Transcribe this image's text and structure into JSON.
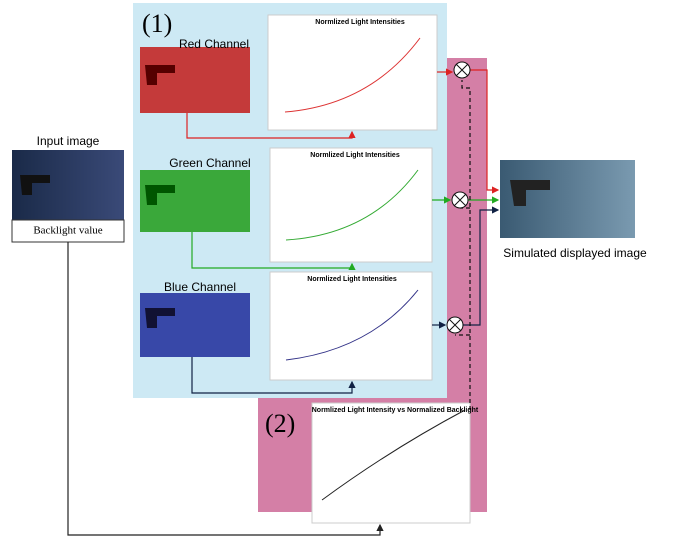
{
  "input": {
    "label": "Input image",
    "backlight": "Backlight value"
  },
  "panel1": {
    "label": "(1)",
    "channels": [
      {
        "name": "Red Channel",
        "chart_title": "Normlized Light Intensities"
      },
      {
        "name": "Green Channel",
        "chart_title": "Normlized Light Intensities"
      },
      {
        "name": "Blue Channel",
        "chart_title": "Normlized Light Intensities"
      }
    ]
  },
  "panel2": {
    "label": "(2)",
    "chart_title": "Normlized Light Intensity vs Normalized Backlight"
  },
  "output": {
    "label": "Simulated displayed image"
  }
}
